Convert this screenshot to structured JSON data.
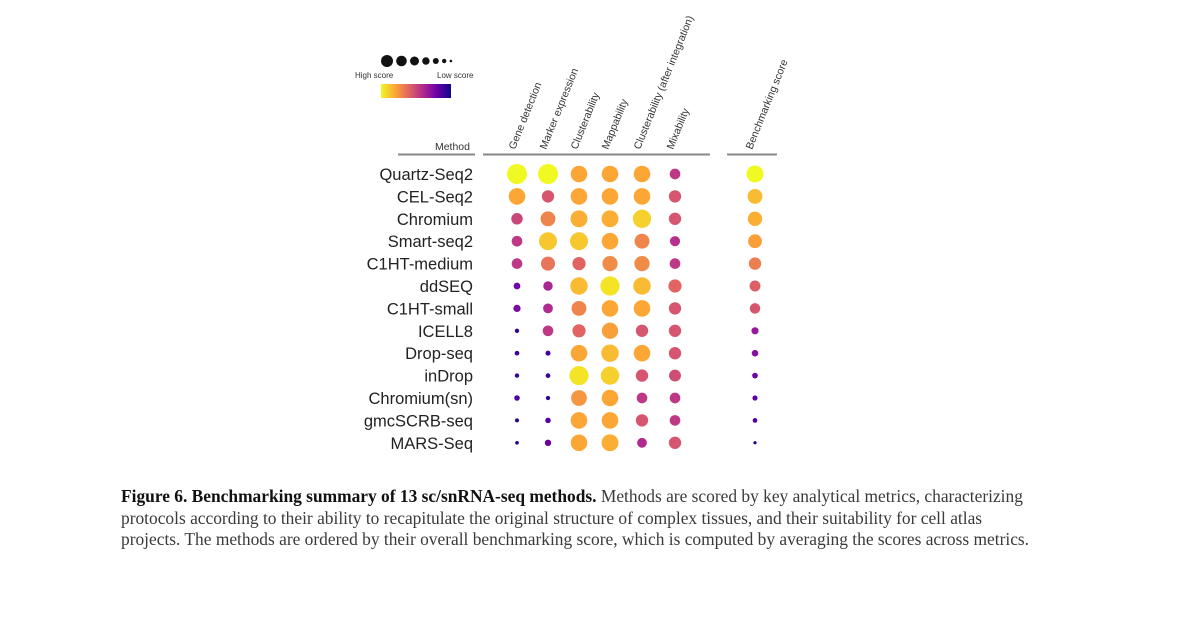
{
  "chart_data": {
    "type": "dot-matrix",
    "title": "",
    "legend": {
      "size_high_label": "High score",
      "size_low_label": "Low score",
      "colors": [
        "#f0f921",
        "#fca636",
        "#e16462",
        "#b12a90",
        "#6a00a8",
        "#0d0887"
      ]
    },
    "method_header": "Method",
    "metrics": [
      "Gene detection",
      "Marker expression",
      "Clusterability",
      "Mappability",
      "Clusterability (after integration)",
      "Mixability"
    ],
    "summary_metric": "Benchmarking score",
    "methods": [
      "Quartz-Seq2",
      "CEL-Seq2",
      "Chromium",
      "Smart-seq2",
      "C1HT-medium",
      "ddSEQ",
      "C1HT-small",
      "ICELL8",
      "Drop-seq",
      "inDrop",
      "Chromium(sn)",
      "gmcSCRB-seq",
      "MARS-Seq"
    ],
    "scores": [
      [
        1.0,
        1.0,
        0.8,
        0.8,
        0.8,
        0.45
      ],
      [
        0.8,
        0.55,
        0.8,
        0.8,
        0.8,
        0.55
      ],
      [
        0.5,
        0.7,
        0.82,
        0.82,
        0.9,
        0.55
      ],
      [
        0.45,
        0.88,
        0.88,
        0.8,
        0.7,
        0.42
      ],
      [
        0.45,
        0.65,
        0.6,
        0.72,
        0.72,
        0.45
      ],
      [
        0.22,
        0.38,
        0.85,
        0.95,
        0.85,
        0.6
      ],
      [
        0.25,
        0.4,
        0.7,
        0.8,
        0.8,
        0.55
      ],
      [
        0.08,
        0.45,
        0.6,
        0.78,
        0.55,
        0.55
      ],
      [
        0.1,
        0.12,
        0.8,
        0.85,
        0.8,
        0.55
      ],
      [
        0.08,
        0.1,
        0.95,
        0.9,
        0.55,
        0.52
      ],
      [
        0.15,
        0.08,
        0.75,
        0.8,
        0.45,
        0.45
      ],
      [
        0.06,
        0.15,
        0.8,
        0.8,
        0.55,
        0.45
      ],
      [
        0.04,
        0.2,
        0.8,
        0.82,
        0.4,
        0.55
      ]
    ],
    "benchmarking_scores": [
      1.0,
      0.85,
      0.82,
      0.78,
      0.68,
      0.58,
      0.55,
      0.32,
      0.28,
      0.22,
      0.18,
      0.15,
      0.05
    ]
  },
  "caption": {
    "label": "Figure 6. Benchmarking summary of 13 sc/snRNA-seq methods.",
    "text": " Methods are scored by key analytical metrics, characterizing protocols according to their ability to recapitulate the original structure of complex tissues, and their suitability for cell atlas projects. The methods are ordered by their overall benchmarking score, which is computed by averaging the scores across metrics."
  }
}
